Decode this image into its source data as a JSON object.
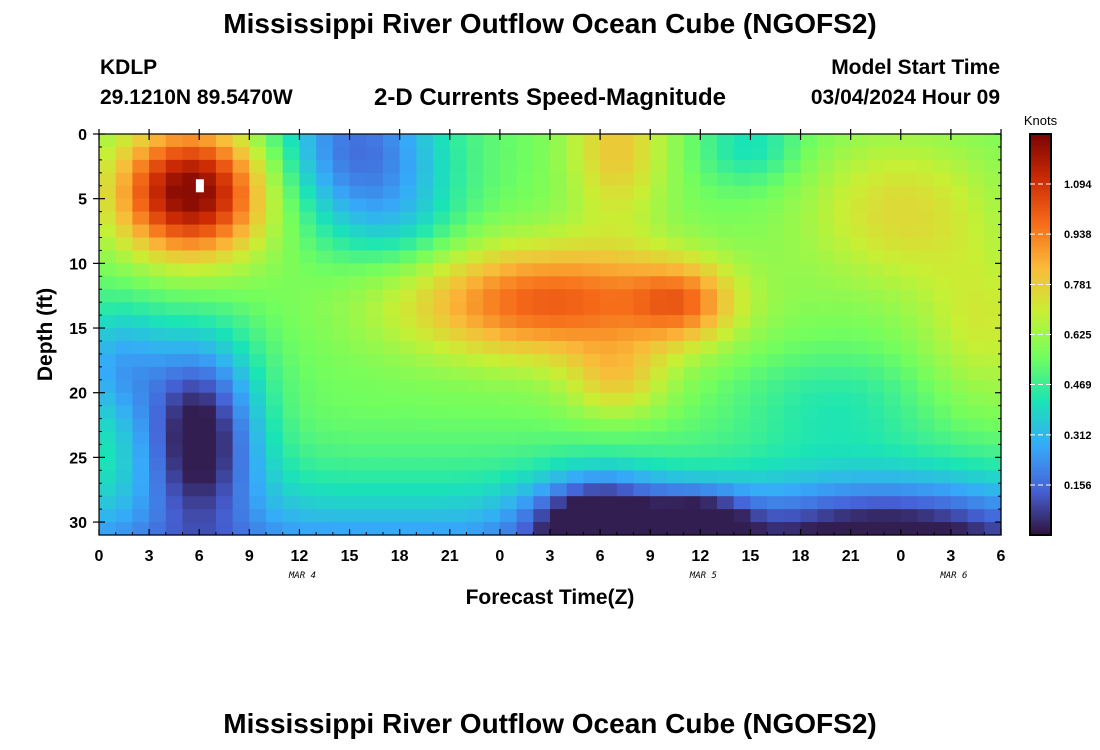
{
  "header": {
    "title": "Mississippi River Outflow Ocean Cube (NGOFS2)",
    "station": "KDLP",
    "coords": "29.1210N  89.5470W",
    "subtitle": "2-D Currents Speed-Magnitude",
    "start_label": "Model Start Time",
    "start_value": "03/04/2024 Hour 09"
  },
  "footer": {
    "title": "Mississippi River Outflow Ocean Cube (NGOFS2)"
  },
  "chart_data": {
    "type": "heatmap",
    "title": "2-D Currents Speed-Magnitude",
    "xlabel": "Forecast Time(Z)",
    "ylabel": "Depth (ft)",
    "xlim": [
      0,
      54
    ],
    "ylim": [
      31,
      0
    ],
    "x_ticks": [
      0,
      3,
      6,
      9,
      12,
      15,
      18,
      21,
      24,
      27,
      30,
      33,
      36,
      39,
      42,
      45,
      48,
      51,
      54
    ],
    "x_tick_labels": [
      "0",
      "3",
      "6",
      "9",
      "12",
      "15",
      "18",
      "21",
      "0",
      "3",
      "6",
      "9",
      "12",
      "15",
      "18",
      "21",
      "0",
      "3",
      "6"
    ],
    "y_ticks": [
      0,
      5,
      10,
      15,
      20,
      25,
      30
    ],
    "y_tick_labels": [
      "0",
      "5",
      "10",
      "15",
      "20",
      "25",
      "30"
    ],
    "date_labels": [
      {
        "x": 12,
        "text": "MAR 4"
      },
      {
        "x": 36,
        "text": "MAR 5"
      },
      {
        "x": 51,
        "text": "MAR 6"
      }
    ],
    "colorbar": {
      "title": "Knots",
      "range": [
        0,
        1.25
      ],
      "ticks": [
        0.156,
        0.312,
        0.469,
        0.625,
        0.781,
        0.938,
        1.094
      ],
      "tick_labels": [
        "0.156",
        "0.312",
        "0.469",
        "0.625",
        "0.781",
        "0.938",
        "1.094"
      ],
      "colors": [
        "#30123b",
        "#4662d7",
        "#36aaf9",
        "#1ae4b6",
        "#72fe5e",
        "#c8ef34",
        "#faba39",
        "#f66b19",
        "#cb2a04",
        "#7a0403"
      ]
    },
    "grid": false,
    "legend": "colorbar-right",
    "value_regions": [
      {
        "x": 5.5,
        "y": 4,
        "value": 1.18,
        "note": "surface maximum MAR 4"
      },
      {
        "x": 27.5,
        "y": 13,
        "value": 1.0,
        "note": "subsurface maximum MAR 5"
      },
      {
        "x": 6,
        "y": 22,
        "value": 0.05,
        "note": "bottom minimum"
      },
      {
        "x": 30,
        "y": 30,
        "value": 0.03,
        "note": "bottom minimum MAR 5"
      },
      {
        "x": 15,
        "y": 0,
        "value": 0.2,
        "note": "surface low"
      },
      {
        "x": 48,
        "y": 8,
        "value": 0.75,
        "note": "upper layer"
      }
    ]
  }
}
